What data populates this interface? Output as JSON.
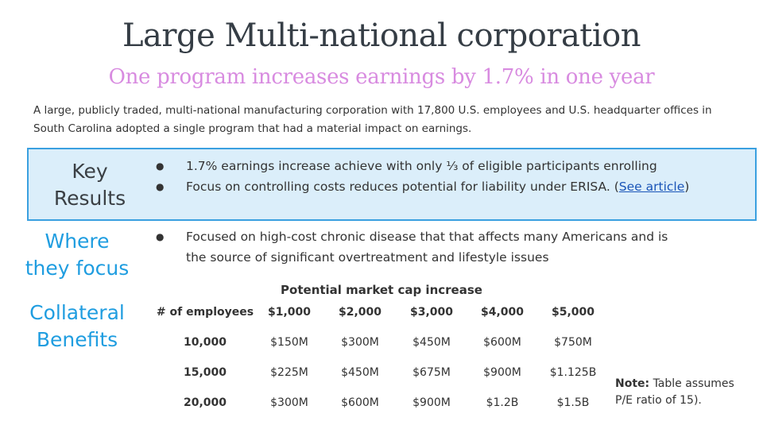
{
  "title": "Large Multi-national corporation",
  "subtitle": "One program increases earnings by 1.7% in one year",
  "intro": "A large, publicly traded, multi-national manufacturing corporation with 17,800 U.S. employees and U.S. headquarter offices in South Carolina adopted a single program that had a material impact on earnings.",
  "key_results": {
    "label": "Key Results",
    "bullet_1": "1.7% earnings increase achieve with only ⅓ of eligible participants enrolling",
    "bullet_2_text": "Focus on controlling costs reduces potential for liability under ERISA. (",
    "bullet_2_link": "See article",
    "bullet_2_close": ")"
  },
  "focus": {
    "label": "Where they focus",
    "bullet_1": "Focused on high-cost chronic disease that that affects many Americans and is the source of significant overtreatment and lifestyle issues"
  },
  "collateral": {
    "label": "Collateral Benefits"
  },
  "table": {
    "title": "Potential market cap increase",
    "headers": [
      "# of employees",
      "$1,000",
      "$2,000",
      "$3,000",
      "$4,000",
      "$5,000"
    ],
    "rows": [
      [
        "10,000",
        "$150M",
        "$300M",
        "$450M",
        "$600M",
        "$750M"
      ],
      [
        "15,000",
        "$225M",
        "$450M",
        "$675M",
        "$900M",
        "$1.125B"
      ],
      [
        "20,000",
        "$300M",
        "$600M",
        "$900M",
        "$1.2B",
        "$1.5B"
      ]
    ]
  },
  "note": {
    "label": "Note:",
    "text": " Table assumes P/E ratio of 15)."
  },
  "colors": {
    "title": "#353d45",
    "subtitle": "#d88be0",
    "accent_blue": "#1f9de0",
    "box_fill": "#dbeefa",
    "box_border": "#3aa0e0",
    "link": "#1a55b8"
  }
}
